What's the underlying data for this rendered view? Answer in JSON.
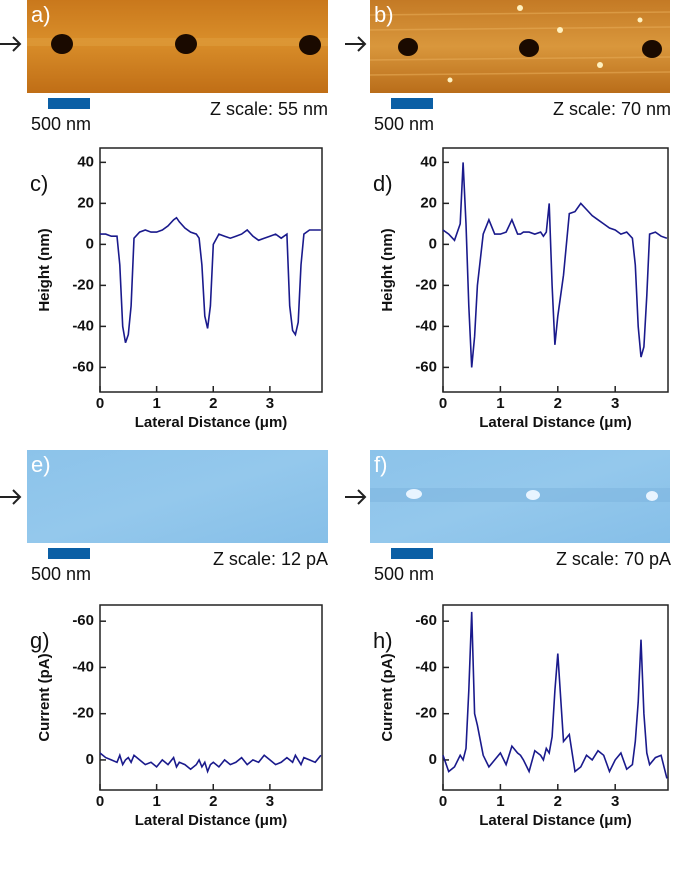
{
  "images": [
    {
      "label": "a)",
      "scale_bar": "500 nm",
      "z_scale": "Z scale: 55 nm"
    },
    {
      "label": "b)",
      "scale_bar": "500 nm",
      "z_scale": "Z scale: 70 nm"
    },
    {
      "label": "e)",
      "scale_bar": "500 nm",
      "z_scale": "Z scale: 12 pA"
    },
    {
      "label": "f)",
      "scale_bar": "500 nm",
      "z_scale": "Z scale: 70 pA"
    }
  ],
  "chart_data": [
    {
      "type": "line",
      "label": "c)",
      "xlabel": "Lateral Distance (μm)",
      "ylabel": "Height (nm)",
      "x": [
        0,
        0.1,
        0.2,
        0.3,
        0.35,
        0.4,
        0.45,
        0.5,
        0.55,
        0.6,
        0.7,
        0.8,
        0.9,
        1.0,
        1.1,
        1.2,
        1.3,
        1.35,
        1.4,
        1.5,
        1.6,
        1.7,
        1.75,
        1.8,
        1.85,
        1.9,
        1.95,
        2.0,
        2.1,
        2.2,
        2.3,
        2.4,
        2.5,
        2.6,
        2.7,
        2.8,
        2.9,
        3.0,
        3.1,
        3.2,
        3.3,
        3.35,
        3.4,
        3.45,
        3.5,
        3.55,
        3.6,
        3.7,
        3.8,
        3.9
      ],
      "series": [
        {
          "color": "#1a1a8c",
          "values": [
            5,
            5,
            4,
            4,
            -10,
            -40,
            -48,
            -44,
            -30,
            3,
            6,
            7,
            6,
            6,
            7,
            9,
            12,
            13,
            11,
            8,
            6,
            5,
            3,
            -10,
            -35,
            -41,
            -30,
            0,
            5,
            4,
            3,
            4,
            5,
            7,
            4,
            2,
            3,
            4,
            5,
            3,
            5,
            -30,
            -42,
            -44,
            -38,
            -10,
            5,
            7,
            7,
            7
          ]
        }
      ],
      "xlim": [
        0,
        3.92
      ],
      "xticks": [
        0,
        1,
        2,
        3
      ],
      "ylim": [
        -72,
        47
      ],
      "yticks": [
        -60,
        -40,
        -20,
        0,
        20,
        40
      ]
    },
    {
      "type": "line",
      "label": "d)",
      "xlabel": "Lateral Distance (μm)",
      "ylabel": "Height (nm)",
      "x": [
        0,
        0.1,
        0.2,
        0.3,
        0.35,
        0.4,
        0.45,
        0.5,
        0.55,
        0.6,
        0.7,
        0.8,
        0.9,
        1.0,
        1.1,
        1.2,
        1.3,
        1.35,
        1.4,
        1.5,
        1.6,
        1.7,
        1.75,
        1.8,
        1.85,
        1.9,
        1.95,
        2.0,
        2.1,
        2.2,
        2.3,
        2.4,
        2.5,
        2.6,
        2.7,
        2.8,
        2.9,
        3.0,
        3.1,
        3.2,
        3.3,
        3.35,
        3.4,
        3.45,
        3.5,
        3.55,
        3.6,
        3.7,
        3.8,
        3.9
      ],
      "series": [
        {
          "color": "#1a1a8c",
          "values": [
            7,
            5,
            2,
            10,
            40,
            10,
            -30,
            -60,
            -45,
            -20,
            5,
            12,
            5,
            5,
            6,
            12,
            5,
            5,
            6,
            6,
            5,
            6,
            4,
            6,
            20,
            -20,
            -49,
            -35,
            -15,
            15,
            16,
            20,
            17,
            14,
            12,
            10,
            8,
            7,
            5,
            6,
            3,
            -10,
            -40,
            -55,
            -50,
            -25,
            5,
            6,
            4,
            3
          ]
        }
      ],
      "xlim": [
        0,
        3.92
      ],
      "xticks": [
        0,
        1,
        2,
        3
      ],
      "ylim": [
        -72,
        47
      ],
      "yticks": [
        -60,
        -40,
        -20,
        0,
        20,
        40
      ]
    },
    {
      "type": "line",
      "label": "g)",
      "xlabel": "Lateral Distance (μm)",
      "ylabel": "Current (pA)",
      "x": [
        0,
        0.1,
        0.2,
        0.3,
        0.35,
        0.4,
        0.45,
        0.5,
        0.55,
        0.6,
        0.7,
        0.8,
        0.9,
        1.0,
        1.1,
        1.2,
        1.3,
        1.35,
        1.4,
        1.5,
        1.6,
        1.7,
        1.75,
        1.8,
        1.85,
        1.9,
        1.95,
        2.0,
        2.1,
        2.2,
        2.3,
        2.4,
        2.5,
        2.6,
        2.7,
        2.8,
        2.9,
        3.0,
        3.1,
        3.2,
        3.3,
        3.35,
        3.4,
        3.45,
        3.5,
        3.55,
        3.6,
        3.7,
        3.8,
        3.9
      ],
      "series": [
        {
          "color": "#1a1a8c",
          "values": [
            -3,
            -1,
            0,
            1,
            -2,
            2,
            0,
            -1,
            1,
            -2,
            0,
            2,
            1,
            3,
            0,
            2,
            -1,
            3,
            1,
            2,
            4,
            2,
            0,
            3,
            1,
            5,
            2,
            1,
            3,
            0,
            2,
            1,
            -1,
            2,
            0,
            1,
            -2,
            0,
            2,
            1,
            -1,
            0,
            1,
            -2,
            0,
            2,
            -1,
            0,
            1,
            -2
          ]
        }
      ],
      "xlim": [
        0,
        3.92
      ],
      "xticks": [
        0,
        1,
        2,
        3
      ],
      "ylim": [
        13,
        -67
      ],
      "yticks": [
        0,
        -20,
        -40,
        -60
      ]
    },
    {
      "type": "line",
      "label": "h)",
      "xlabel": "Lateral Distance (μm)",
      "ylabel": "Current (pA)",
      "x": [
        0,
        0.1,
        0.2,
        0.3,
        0.35,
        0.4,
        0.45,
        0.5,
        0.55,
        0.6,
        0.7,
        0.8,
        0.9,
        1.0,
        1.1,
        1.2,
        1.3,
        1.35,
        1.4,
        1.5,
        1.6,
        1.7,
        1.75,
        1.8,
        1.85,
        1.9,
        1.95,
        2.0,
        2.1,
        2.2,
        2.3,
        2.4,
        2.5,
        2.6,
        2.7,
        2.8,
        2.9,
        3.0,
        3.1,
        3.2,
        3.3,
        3.35,
        3.4,
        3.45,
        3.5,
        3.55,
        3.6,
        3.7,
        3.8,
        3.9
      ],
      "series": [
        {
          "color": "#1a1a8c",
          "values": [
            -2,
            5,
            3,
            -2,
            0,
            -5,
            -30,
            -64,
            -20,
            -15,
            -2,
            3,
            0,
            -3,
            2,
            -6,
            -3,
            -2,
            0,
            5,
            -4,
            -2,
            0,
            -5,
            -3,
            -10,
            -30,
            -46,
            -8,
            -11,
            5,
            3,
            -2,
            0,
            -4,
            -2,
            5,
            0,
            -3,
            4,
            2,
            -8,
            -25,
            -52,
            -20,
            -3,
            2,
            -1,
            -2,
            8
          ]
        }
      ],
      "xlim": [
        0,
        3.92
      ],
      "xticks": [
        0,
        1,
        2,
        3
      ],
      "ylim": [
        13,
        -67
      ],
      "yticks": [
        0,
        -20,
        -40,
        -60
      ]
    }
  ]
}
